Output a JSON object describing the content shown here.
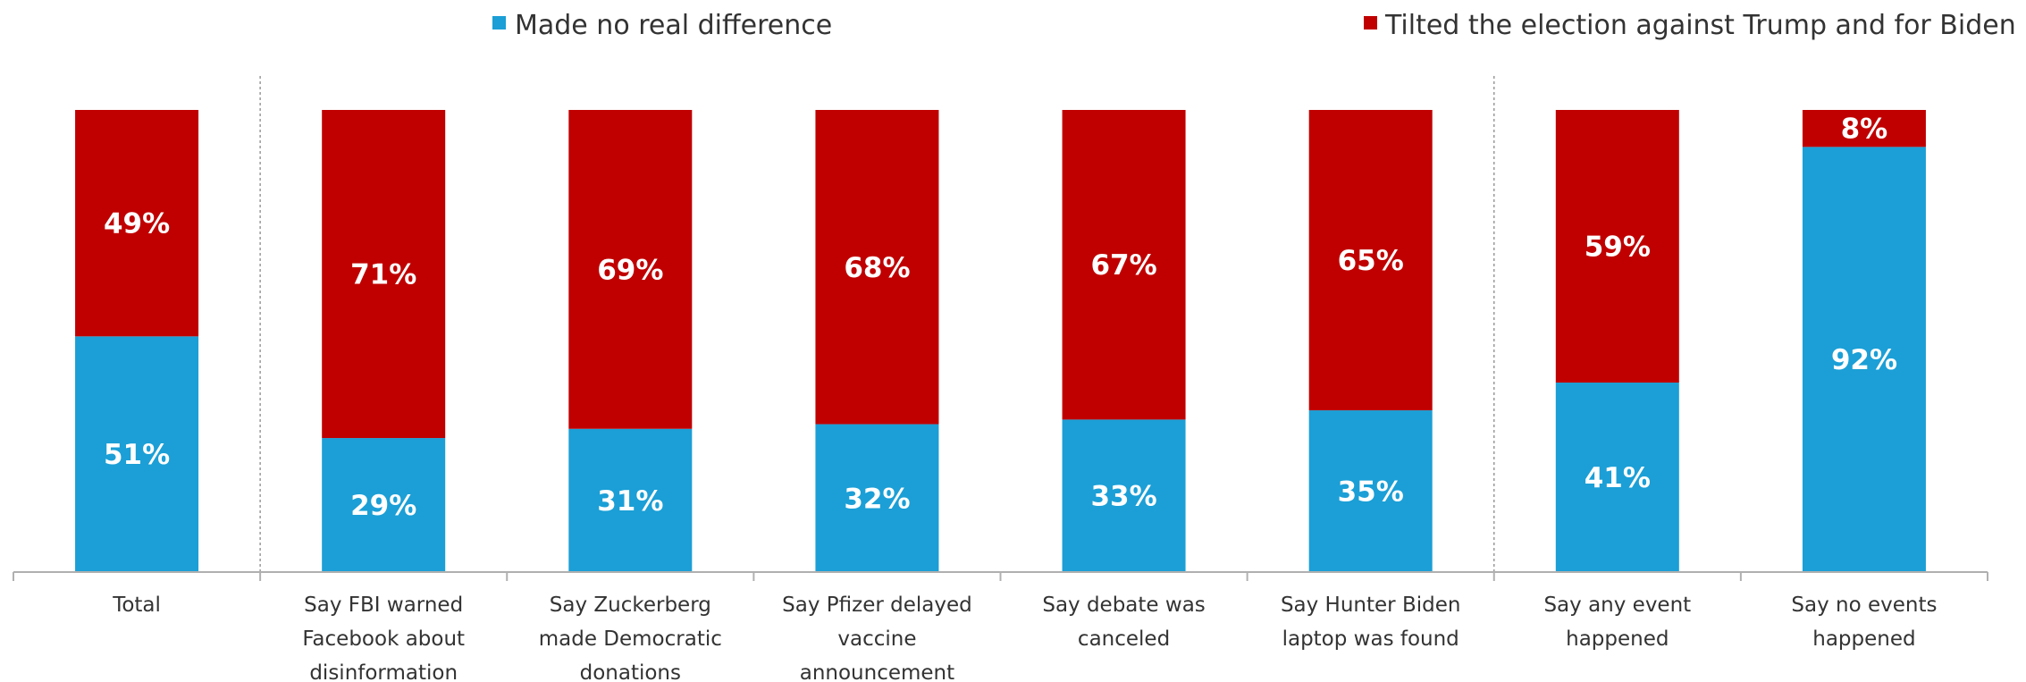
{
  "chart_data": {
    "type": "bar",
    "stacked": true,
    "percent_stacked": true,
    "categories": [
      [
        "Total"
      ],
      [
        "Say FBI warned",
        "Facebook about",
        "disinformation"
      ],
      [
        "Say Zuckerberg",
        "made Democratic",
        "donations"
      ],
      [
        "Say Pfizer delayed",
        "vaccine",
        "announcement"
      ],
      [
        "Say debate was",
        "canceled"
      ],
      [
        "Say Hunter Biden",
        "laptop was found"
      ],
      [
        "Say any event",
        "happened"
      ],
      [
        "Say no events",
        "happened"
      ]
    ],
    "series": [
      {
        "name": "Made no real difference",
        "color": "#1b9fd6",
        "values": [
          51,
          29,
          31,
          32,
          33,
          35,
          41,
          92
        ],
        "labels": [
          "51%",
          "29%",
          "31%",
          "32%",
          "33%",
          "35%",
          "41%",
          "92%"
        ]
      },
      {
        "name": "Tilted the election against Trump and for Biden",
        "color": "#c00000",
        "values": [
          49,
          71,
          69,
          68,
          67,
          65,
          59,
          8
        ],
        "labels": [
          "49%",
          "71%",
          "69%",
          "68%",
          "67%",
          "65%",
          "59%",
          "8%"
        ]
      }
    ],
    "ylim": [
      0,
      100
    ],
    "legend_position": "top",
    "group_separators_after": [
      "Total",
      "Say Hunter Biden laptop was found"
    ],
    "gridlines": false,
    "title": "",
    "xlabel": "",
    "ylabel": ""
  }
}
